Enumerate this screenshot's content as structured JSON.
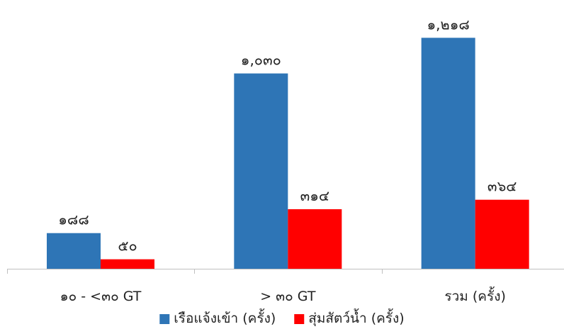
{
  "chart_data": {
    "type": "bar",
    "categories": [
      "๑๐ - <๓๐ GT",
      "> ๓๐ GT",
      "รวม (ครั้ง)"
    ],
    "series": [
      {
        "name": "เรือแจ้งเข้า (ครั้ง)",
        "color": "#2E75B6",
        "values": [
          188,
          1030,
          1218
        ],
        "labels": [
          "๑๘๘",
          "๑,๐๓๐",
          "๑,๒๑๘"
        ]
      },
      {
        "name": "สุ่มสัตว์น้ำ (ครั้ง)",
        "color": "#FF0000",
        "values": [
          50,
          314,
          364
        ],
        "labels": [
          "๕๐",
          "๓๑๔",
          "๓๖๔"
        ]
      }
    ],
    "title": "",
    "xlabel": "",
    "ylabel": "",
    "ylim": [
      0,
      1350
    ],
    "grid": false,
    "legend_position": "bottom"
  }
}
